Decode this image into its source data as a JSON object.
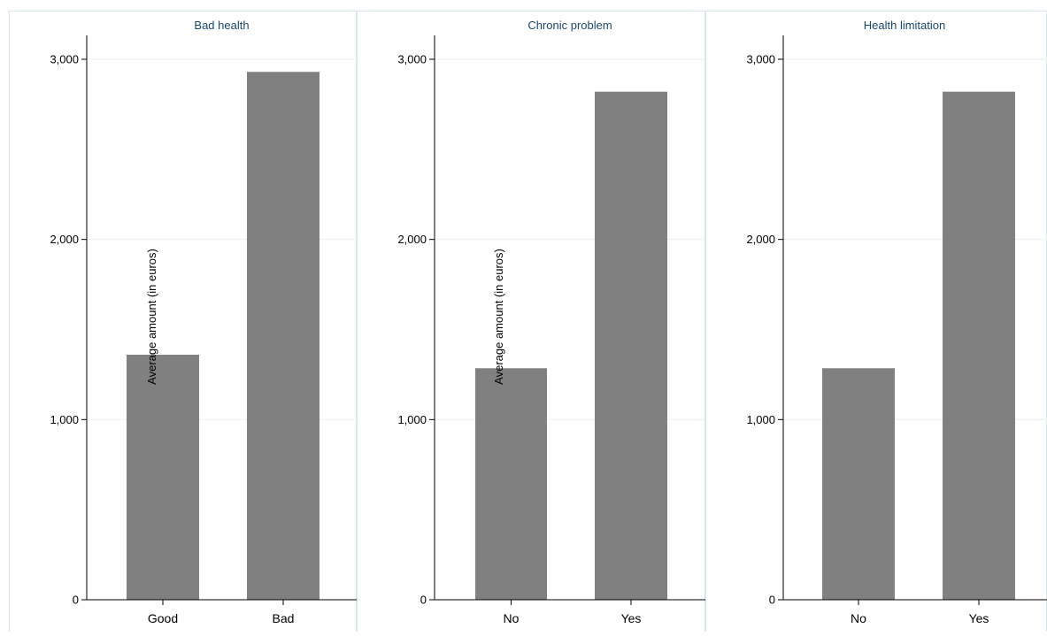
{
  "chart_data": [
    {
      "type": "bar",
      "title": "Bad health",
      "ylabel": "Average amount (in euros)",
      "categories": [
        "Good",
        "Bad"
      ],
      "values": [
        1360,
        2930
      ],
      "ylim": [
        0,
        3000
      ],
      "yticks": [
        0,
        1000,
        2000,
        3000
      ],
      "ytick_labels": [
        "0",
        "1,000",
        "2,000",
        "3,000"
      ],
      "grid": true,
      "bar_color": "#808080"
    },
    {
      "type": "bar",
      "title": "Chronic problem",
      "ylabel": "Average amount (in euros)",
      "categories": [
        "No",
        "Yes"
      ],
      "values": [
        1285,
        2820
      ],
      "ylim": [
        0,
        3000
      ],
      "yticks": [
        0,
        1000,
        2000,
        3000
      ],
      "ytick_labels": [
        "0",
        "1,000",
        "2,000",
        "3,000"
      ],
      "grid": true,
      "bar_color": "#808080"
    },
    {
      "type": "bar",
      "title": "Health limitation",
      "ylabel": "",
      "categories": [
        "No",
        "Yes"
      ],
      "values": [
        1285,
        2820
      ],
      "ylim": [
        0,
        3000
      ],
      "yticks": [
        0,
        1000,
        2000,
        3000
      ],
      "ytick_labels": [
        "0",
        "1,000",
        "2,000",
        "3,000"
      ],
      "grid": true,
      "bar_color": "#808080"
    }
  ],
  "colors": {
    "title_text": "#1a476f",
    "axis": "#000000",
    "grid": "#eaf2f3",
    "frame": "#d9e6eb"
  }
}
